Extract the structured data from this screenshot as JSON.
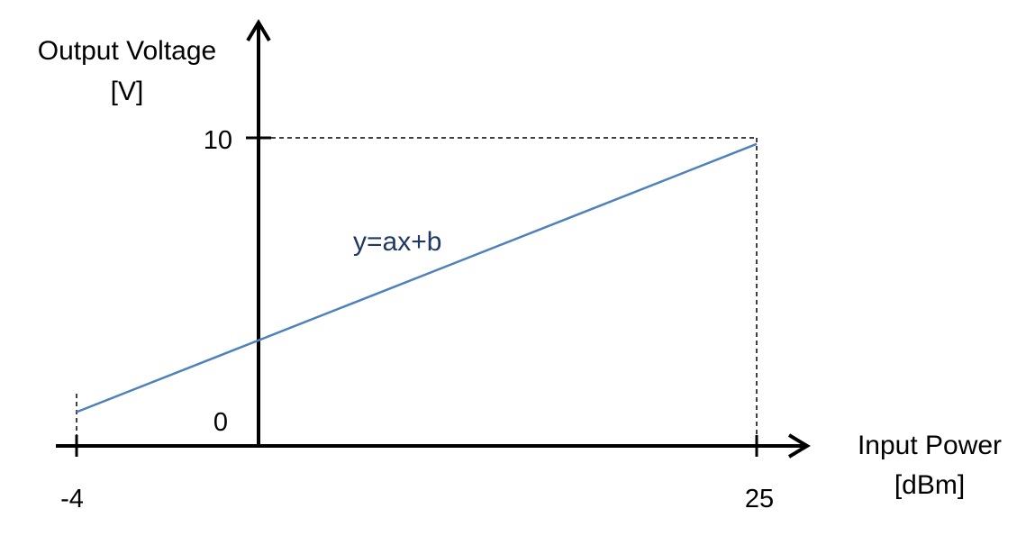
{
  "chart_data": {
    "type": "line",
    "ylabel_line1": "Output Voltage",
    "ylabel_line2": "[V]",
    "xlabel_line1": "Input Power",
    "xlabel_line2": "[dBm]",
    "x_ticks": [
      "-4",
      "25"
    ],
    "y_ticks": [
      "0",
      "10"
    ],
    "annotation": "y=ax+b",
    "xlim": [
      -4,
      25
    ],
    "ylim": [
      0,
      10
    ],
    "series": [
      {
        "x": [
          -4,
          25
        ],
        "y": [
          1.1,
          9.8
        ]
      }
    ],
    "line_color": "#4f81bd",
    "annotation_color": "#1f3864",
    "grid": false
  }
}
